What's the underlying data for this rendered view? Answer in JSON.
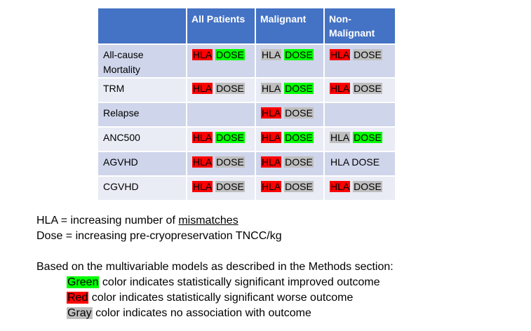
{
  "table": {
    "headers": [
      "",
      "All Patients",
      "Malignant",
      "Non-\nMalignant"
    ],
    "rows": [
      {
        "label": "All-cause\nMortality",
        "cells": [
          [
            {
              "text": "HLA",
              "color": "red"
            },
            {
              "text": "DOSE",
              "color": "green"
            }
          ],
          [
            {
              "text": "HLA",
              "color": "gray"
            },
            {
              "text": "DOSE",
              "color": "green"
            }
          ],
          [
            {
              "text": "HLA",
              "color": "red"
            },
            {
              "text": "DOSE",
              "color": "gray"
            }
          ]
        ]
      },
      {
        "label": "TRM",
        "cells": [
          [
            {
              "text": "HLA",
              "color": "red"
            },
            {
              "text": "DOSE",
              "color": "gray"
            }
          ],
          [
            {
              "text": "HLA",
              "color": "gray"
            },
            {
              "text": "DOSE",
              "color": "green"
            }
          ],
          [
            {
              "text": "HLA",
              "color": "red"
            },
            {
              "text": "DOSE",
              "color": "gray"
            }
          ]
        ]
      },
      {
        "label": "Relapse",
        "cells": [
          [],
          [
            {
              "text": "HLA",
              "color": "red"
            },
            {
              "text": "DOSE",
              "color": "gray"
            }
          ],
          []
        ]
      },
      {
        "label": "ANC500",
        "cells": [
          [
            {
              "text": "HLA",
              "color": "red"
            },
            {
              "text": "DOSE",
              "color": "green"
            }
          ],
          [
            {
              "text": "HLA",
              "color": "red"
            },
            {
              "text": "DOSE",
              "color": "green"
            }
          ],
          [
            {
              "text": "HLA",
              "color": "gray"
            },
            {
              "text": "DOSE",
              "color": "green"
            }
          ]
        ]
      },
      {
        "label": "AGVHD",
        "cells": [
          [
            {
              "text": "HLA",
              "color": "red"
            },
            {
              "text": "DOSE",
              "color": "gray"
            }
          ],
          [
            {
              "text": "HLA",
              "color": "red"
            },
            {
              "text": "DOSE",
              "color": "gray"
            }
          ],
          [
            {
              "text": "HLA DOSE",
              "color": "none"
            }
          ]
        ]
      },
      {
        "label": "CGVHD",
        "cells": [
          [
            {
              "text": "HLA",
              "color": "red"
            },
            {
              "text": "DOSE",
              "color": "gray"
            }
          ],
          [
            {
              "text": "HLA",
              "color": "red"
            },
            {
              "text": "DOSE",
              "color": "gray"
            }
          ],
          [
            {
              "text": "HLA",
              "color": "red"
            },
            {
              "text": "DOSE",
              "color": "gray"
            }
          ]
        ]
      }
    ]
  },
  "notes": {
    "hla_prefix": "HLA = increasing number of ",
    "hla_underlined": "mismatches",
    "dose_def": "Dose = increasing pre-cryopreservation TNCC/kg",
    "intro": "Based on the multivariable models as described in the Methods section:",
    "green_word": "Green",
    "green_rest": " color indicates statistically significant improved outcome",
    "red_word": "Red",
    "red_rest": " color indicates statistically significant worse outcome",
    "gray_word": "Gray",
    "gray_rest": " color indicates no association with outcome"
  },
  "colors": {
    "header_blue": "#4472c4",
    "row_dark": "#cfd5ea",
    "row_light": "#e9ebf5",
    "green": "#00ff00",
    "red": "#ff0000",
    "gray": "#bfbfbf"
  }
}
